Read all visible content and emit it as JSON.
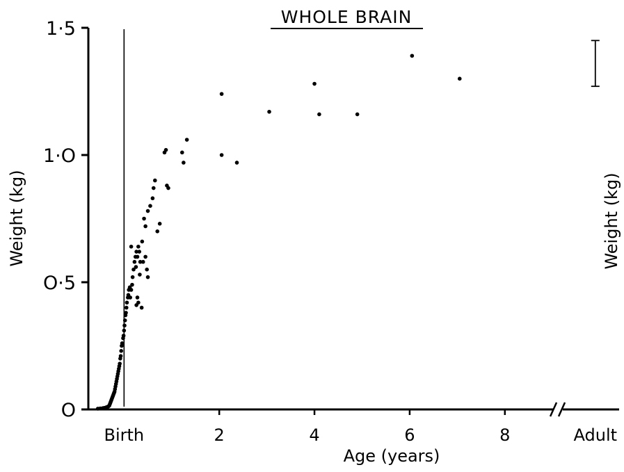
{
  "chart_data": {
    "type": "scatter",
    "title": "WHOLE BRAIN",
    "xlabel": "Age (years)",
    "ylabel": "Weight (kg)",
    "ylabel_right": "Weight (kg)",
    "x_tick_labels": [
      {
        "value": 0,
        "label": "Birth"
      },
      {
        "value": 2,
        "label": "2"
      },
      {
        "value": 4,
        "label": "4"
      },
      {
        "value": 6,
        "label": "6"
      },
      {
        "value": 8,
        "label": "8"
      },
      {
        "value": 9.9,
        "label": "Adult"
      }
    ],
    "y_tick_labels": [
      {
        "value": 0,
        "label": "O"
      },
      {
        "value": 0.5,
        "label": "O·5"
      },
      {
        "value": 1.0,
        "label": "1·O"
      },
      {
        "value": 1.5,
        "label": "1·5"
      }
    ],
    "xlim": [
      -0.75,
      10.4
    ],
    "ylim": [
      0,
      1.5
    ],
    "grid": false,
    "axis_break_at": 9.1,
    "birth_line_x": 0,
    "adult_range": {
      "x": 9.9,
      "low": 1.27,
      "high": 1.45
    },
    "points": [
      [
        -0.55,
        0.003
      ],
      [
        -0.5,
        0.004
      ],
      [
        -0.45,
        0.005
      ],
      [
        -0.42,
        0.006
      ],
      [
        -0.38,
        0.008
      ],
      [
        -0.35,
        0.01
      ],
      [
        -0.33,
        0.012
      ],
      [
        -0.31,
        0.015
      ],
      [
        -0.3,
        0.02
      ],
      [
        -0.29,
        0.025
      ],
      [
        -0.28,
        0.03
      ],
      [
        -0.27,
        0.035
      ],
      [
        -0.26,
        0.04
      ],
      [
        -0.25,
        0.045
      ],
      [
        -0.24,
        0.05
      ],
      [
        -0.23,
        0.055
      ],
      [
        -0.22,
        0.06
      ],
      [
        -0.21,
        0.065
      ],
      [
        -0.2,
        0.07
      ],
      [
        -0.19,
        0.08
      ],
      [
        -0.18,
        0.09
      ],
      [
        -0.17,
        0.1
      ],
      [
        -0.16,
        0.11
      ],
      [
        -0.15,
        0.12
      ],
      [
        -0.14,
        0.13
      ],
      [
        -0.13,
        0.14
      ],
      [
        -0.12,
        0.15
      ],
      [
        -0.11,
        0.16
      ],
      [
        -0.1,
        0.17
      ],
      [
        -0.09,
        0.18
      ],
      [
        -0.08,
        0.2
      ],
      [
        -0.07,
        0.21
      ],
      [
        -0.06,
        0.23
      ],
      [
        -0.05,
        0.25
      ],
      [
        -0.04,
        0.26
      ],
      [
        -0.02,
        0.28
      ],
      [
        -0.01,
        0.29
      ],
      [
        0.0,
        0.31
      ],
      [
        0.01,
        0.33
      ],
      [
        0.02,
        0.35
      ],
      [
        0.03,
        0.37
      ],
      [
        0.04,
        0.38
      ],
      [
        0.05,
        0.4
      ],
      [
        0.06,
        0.42
      ],
      [
        0.08,
        0.44
      ],
      [
        0.09,
        0.45
      ],
      [
        0.1,
        0.47
      ],
      [
        0.12,
        0.48
      ],
      [
        0.13,
        0.44
      ],
      [
        0.15,
        0.47
      ],
      [
        0.17,
        0.49
      ],
      [
        0.18,
        0.52
      ],
      [
        0.2,
        0.55
      ],
      [
        0.22,
        0.58
      ],
      [
        0.24,
        0.6
      ],
      [
        0.26,
        0.62
      ],
      [
        0.28,
        0.6
      ],
      [
        0.3,
        0.64
      ],
      [
        0.32,
        0.62
      ],
      [
        0.34,
        0.58
      ],
      [
        0.15,
        0.64
      ],
      [
        0.25,
        0.56
      ],
      [
        0.33,
        0.53
      ],
      [
        0.4,
        0.58
      ],
      [
        0.45,
        0.6
      ],
      [
        0.48,
        0.55
      ],
      [
        0.5,
        0.52
      ],
      [
        0.38,
        0.66
      ],
      [
        0.42,
        0.75
      ],
      [
        0.45,
        0.72
      ],
      [
        0.5,
        0.78
      ],
      [
        0.55,
        0.8
      ],
      [
        0.6,
        0.83
      ],
      [
        0.62,
        0.87
      ],
      [
        0.65,
        0.9
      ],
      [
        0.7,
        0.7
      ],
      [
        0.75,
        0.73
      ],
      [
        0.85,
        1.01
      ],
      [
        0.88,
        1.02
      ],
      [
        0.9,
        0.88
      ],
      [
        0.93,
        0.87
      ],
      [
        0.37,
        0.4
      ],
      [
        0.3,
        0.42
      ],
      [
        0.28,
        0.44
      ],
      [
        0.26,
        0.41
      ],
      [
        1.22,
        1.01
      ],
      [
        1.25,
        0.97
      ],
      [
        1.32,
        1.06
      ],
      [
        2.05,
        1.24
      ],
      [
        2.05,
        1.0
      ],
      [
        2.37,
        0.97
      ],
      [
        3.05,
        1.17
      ],
      [
        4.0,
        1.28
      ],
      [
        4.1,
        1.16
      ],
      [
        4.9,
        1.16
      ],
      [
        6.05,
        1.39
      ],
      [
        7.05,
        1.3
      ]
    ]
  }
}
